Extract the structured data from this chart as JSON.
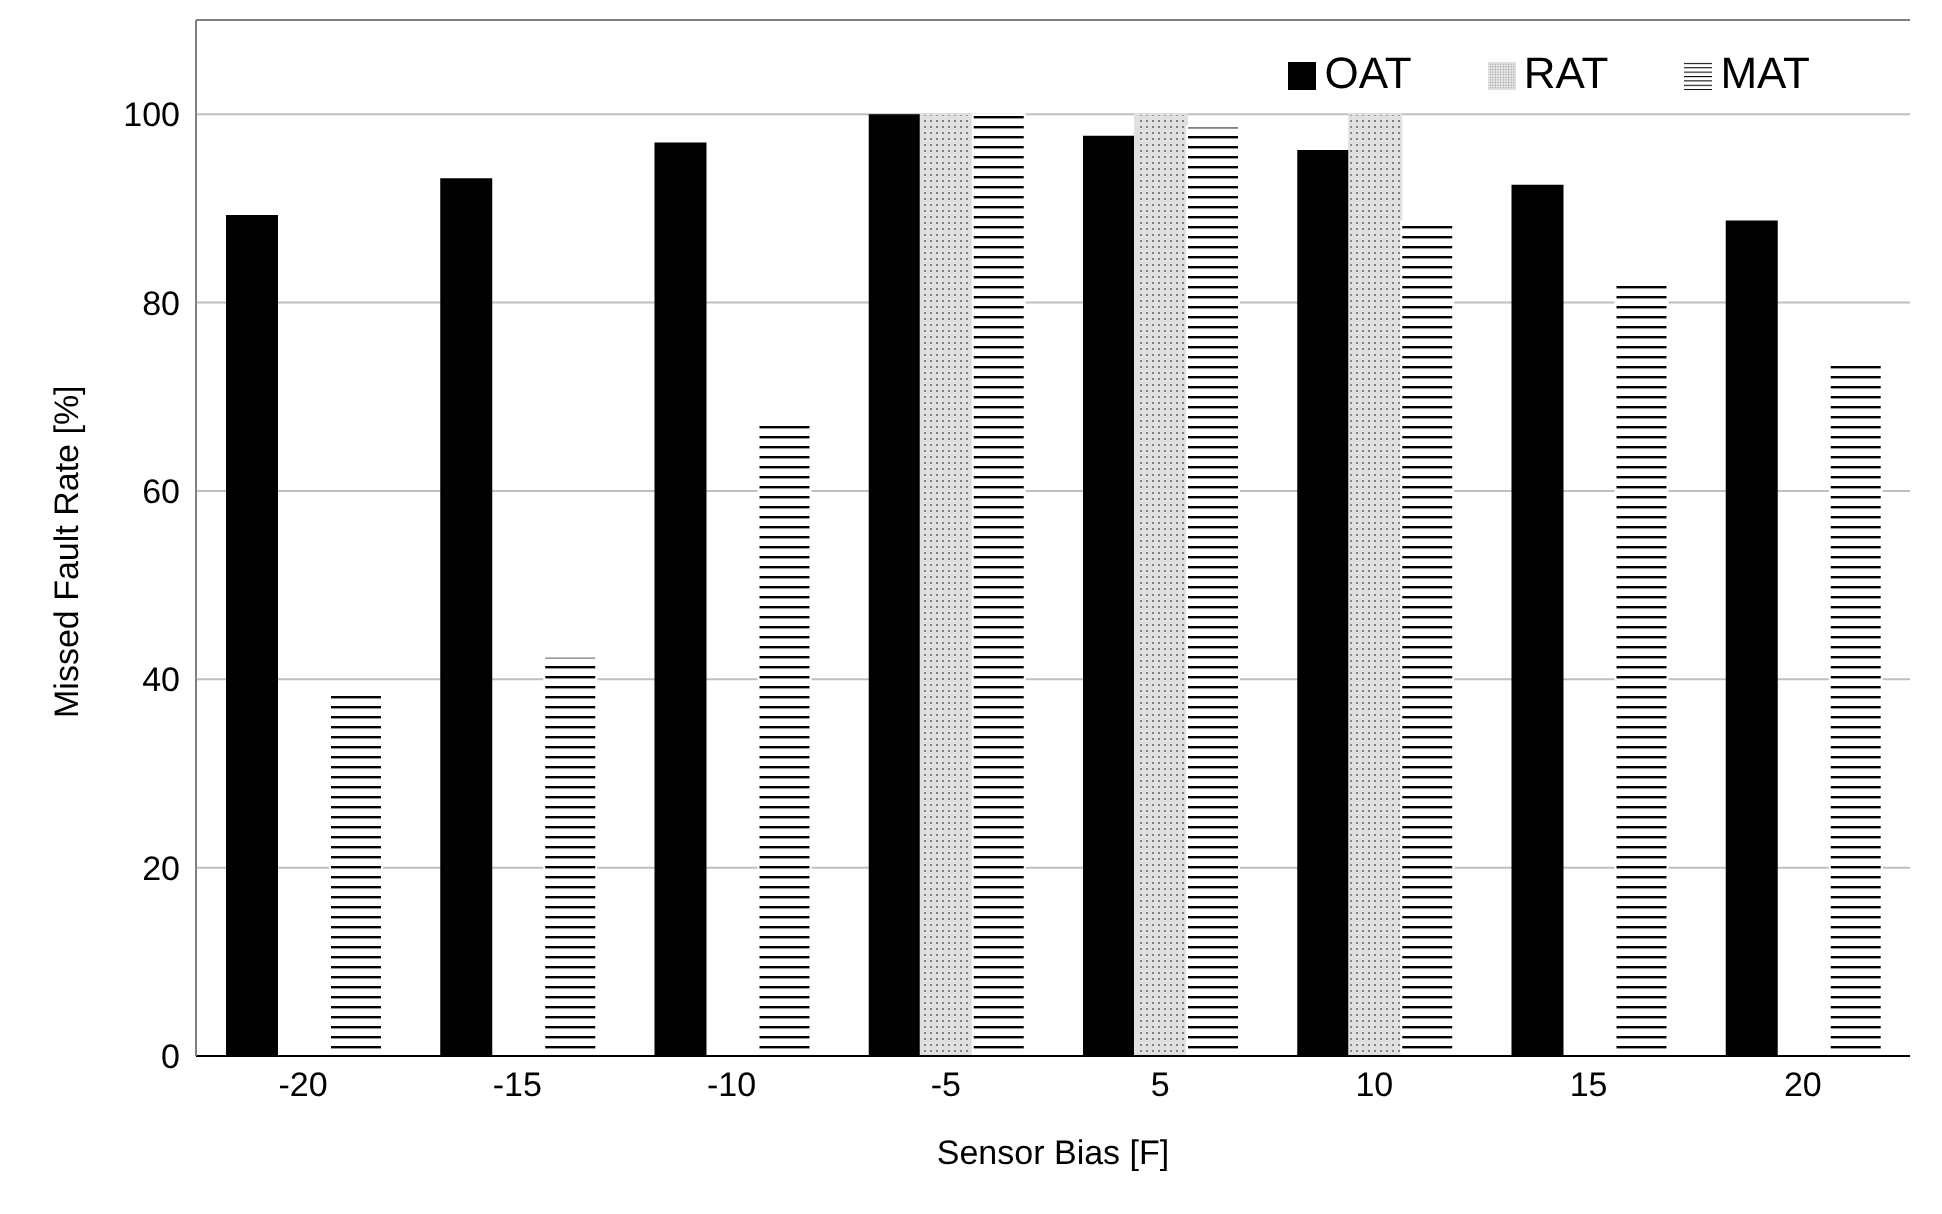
{
  "chart_data": {
    "type": "bar",
    "xlabel": "Sensor Bias [F]",
    "ylabel": "Missed Fault Rate [%]",
    "categories": [
      "-20",
      "-15",
      "-10",
      "-5",
      "5",
      "10",
      "15",
      "20"
    ],
    "series": [
      {
        "name": "OAT",
        "color": "#000000",
        "values": [
          89.3,
          93.2,
          97.0,
          100,
          97.7,
          96.2,
          92.5,
          88.7
        ]
      },
      {
        "name": "RAT",
        "color": "#e0e0e0",
        "values": [
          null,
          null,
          null,
          100,
          100,
          100,
          null,
          null
        ]
      },
      {
        "name": "MAT",
        "color": "#ffffff",
        "values": [
          38.4,
          42.4,
          67.0,
          100,
          98.7,
          88.6,
          82.5,
          74.0
        ]
      }
    ],
    "ylim": [
      0,
      110
    ],
    "yticks": [
      0,
      20,
      40,
      60,
      80,
      100
    ],
    "grid": "y",
    "legend": "top right"
  }
}
